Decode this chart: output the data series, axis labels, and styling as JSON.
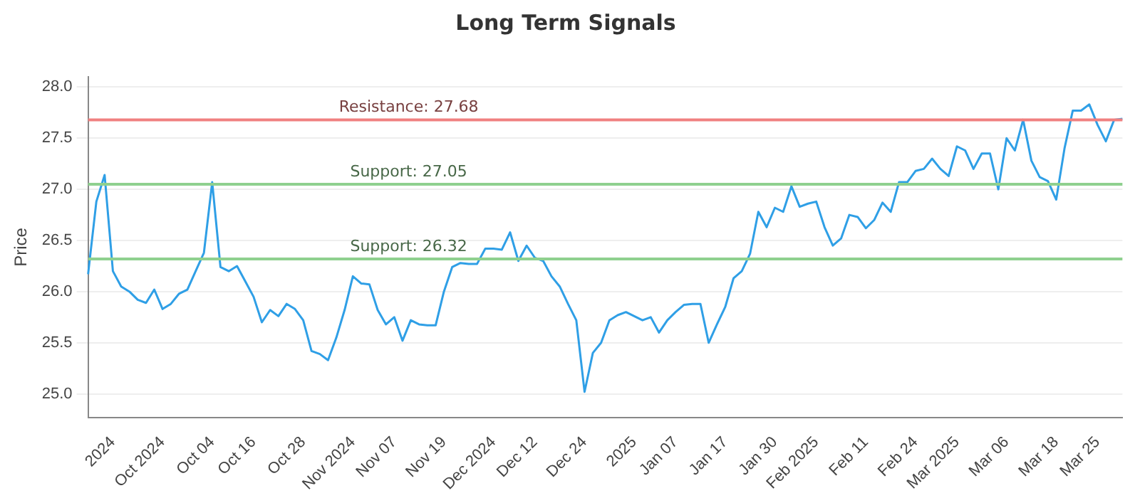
{
  "chart_data": {
    "type": "line",
    "title": "Long Term Signals",
    "ylabel": "Price",
    "categories": [
      null,
      null,
      null,
      "2024",
      null,
      null,
      null,
      null,
      null,
      "Oct 2024",
      null,
      null,
      null,
      null,
      null,
      "Oct 04",
      null,
      null,
      null,
      null,
      "Oct 16",
      null,
      null,
      null,
      null,
      null,
      "Oct 28",
      null,
      null,
      null,
      null,
      null,
      "Nov 2024",
      null,
      null,
      null,
      null,
      "Nov 07",
      null,
      null,
      null,
      null,
      null,
      "Nov 19",
      null,
      null,
      null,
      null,
      null,
      "Dec 2024",
      null,
      null,
      null,
      null,
      "Dec 12",
      null,
      null,
      null,
      null,
      null,
      "Dec 24",
      null,
      null,
      null,
      null,
      null,
      "2025",
      null,
      null,
      null,
      null,
      "Jan 07",
      null,
      null,
      null,
      null,
      null,
      "Jan 17",
      null,
      null,
      null,
      null,
      null,
      "Jan 30",
      null,
      null,
      null,
      null,
      "Feb 2025",
      null,
      null,
      null,
      null,
      null,
      "Feb 11",
      null,
      null,
      null,
      null,
      null,
      "Feb 24",
      null,
      null,
      null,
      null,
      "Mar 2025",
      null,
      null,
      null,
      null,
      null,
      "Mar 06",
      null,
      null,
      null,
      null,
      null,
      "Mar 18",
      null,
      null,
      null,
      null,
      "Mar 25",
      null,
      null,
      null
    ],
    "series": [
      {
        "color": "#2f9fe6",
        "values": [
          26.17,
          26.88,
          27.14,
          26.2,
          26.05,
          26.0,
          25.92,
          25.89,
          26.02,
          25.83,
          25.88,
          25.98,
          26.02,
          26.2,
          26.38,
          27.07,
          26.24,
          26.2,
          26.25,
          26.1,
          25.95,
          25.7,
          25.82,
          25.76,
          25.88,
          25.83,
          25.72,
          25.42,
          25.39,
          25.33,
          25.55,
          25.82,
          26.15,
          26.08,
          26.07,
          25.82,
          25.68,
          25.75,
          25.52,
          25.72,
          25.68,
          25.67,
          25.67,
          26.0,
          26.24,
          26.28,
          26.27,
          26.27,
          26.42,
          26.42,
          26.41,
          26.58,
          26.3,
          26.45,
          26.33,
          26.3,
          26.15,
          26.05,
          25.88,
          25.72,
          25.02,
          25.4,
          25.5,
          25.72,
          25.77,
          25.8,
          25.76,
          25.72,
          25.75,
          25.6,
          25.72,
          25.8,
          25.87,
          25.88,
          25.88,
          25.5,
          25.68,
          25.85,
          26.13,
          26.2,
          26.37,
          26.78,
          26.63,
          26.82,
          26.78,
          27.03,
          26.83,
          26.86,
          26.88,
          26.63,
          26.45,
          26.52,
          26.75,
          26.73,
          26.62,
          26.7,
          26.87,
          26.78,
          27.07,
          27.07,
          27.18,
          27.2,
          27.3,
          27.2,
          27.13,
          27.42,
          27.38,
          27.2,
          27.35,
          27.35,
          27.0,
          27.5,
          27.38,
          27.68,
          27.28,
          27.12,
          27.08,
          26.9,
          27.4,
          27.77,
          27.77,
          27.83,
          27.63,
          27.47,
          27.68,
          27.69
        ]
      }
    ],
    "ylim": [
      24.77,
      28.1
    ],
    "yticks": [
      {
        "value": 25,
        "label": "25.0"
      },
      {
        "value": 25.5,
        "label": "25.5"
      },
      {
        "value": 26,
        "label": "26.0"
      },
      {
        "value": 26.5,
        "label": "26.5"
      },
      {
        "value": 27,
        "label": "27.0"
      },
      {
        "value": 27.5,
        "label": "27.5"
      },
      {
        "value": 28,
        "label": "28.0"
      }
    ],
    "ref_lines": [
      {
        "axis": "y",
        "value": 27.68,
        "label": "Resistance: 27.68",
        "color": "#f08080"
      },
      {
        "axis": "y",
        "value": 27.05,
        "label": "Support: 27.05",
        "color": "#8fd08f"
      },
      {
        "axis": "y",
        "value": 26.32,
        "label": "Support: 26.32",
        "color": "#8fd08f"
      }
    ],
    "grid": "y",
    "legend": false,
    "marker": "none",
    "line_style": "solid"
  }
}
